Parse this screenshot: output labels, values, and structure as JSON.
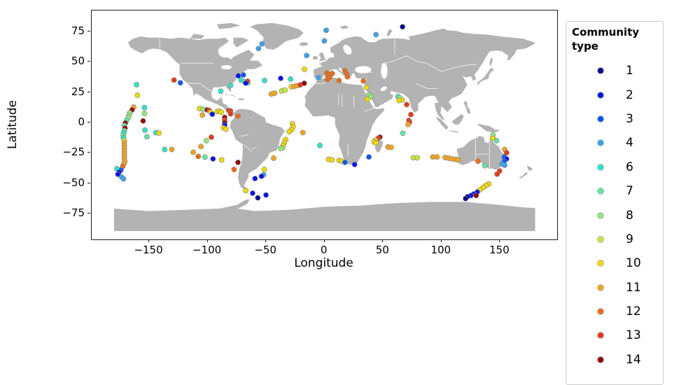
{
  "axes": {
    "xlabel": "Longitude",
    "ylabel": "Latitude",
    "x_ticks": [
      {
        "value": -150,
        "label": "−150"
      },
      {
        "value": -100,
        "label": "−100"
      },
      {
        "value": -50,
        "label": "−50"
      },
      {
        "value": 0,
        "label": "0"
      },
      {
        "value": 50,
        "label": "50"
      },
      {
        "value": 100,
        "label": "100"
      },
      {
        "value": 150,
        "label": "150"
      }
    ],
    "y_ticks": [
      {
        "value": 75,
        "label": "75"
      },
      {
        "value": 50,
        "label": "50"
      },
      {
        "value": 25,
        "label": "25"
      },
      {
        "value": 0,
        "label": "0"
      },
      {
        "value": -25,
        "label": "−25"
      },
      {
        "value": -50,
        "label": "−50"
      },
      {
        "value": -75,
        "label": "−75"
      }
    ]
  },
  "legend": {
    "title_line1": "Community",
    "title_line2": "type",
    "items": [
      {
        "label": "1",
        "color": "#00008F"
      },
      {
        "label": "2",
        "color": "#0013E8"
      },
      {
        "label": "3",
        "color": "#0057FB"
      },
      {
        "label": "4",
        "color": "#38A2EF"
      },
      {
        "label": "6",
        "color": "#2CE5C6"
      },
      {
        "label": "7",
        "color": "#5FE8A1"
      },
      {
        "label": "8",
        "color": "#90E87D"
      },
      {
        "label": "9",
        "color": "#C1E93E"
      },
      {
        "label": "10",
        "color": "#F1DA00"
      },
      {
        "label": "11",
        "color": "#F4A41F"
      },
      {
        "label": "12",
        "color": "#F16A14"
      },
      {
        "label": "13",
        "color": "#E73A17"
      },
      {
        "label": "14",
        "color": "#940000"
      }
    ]
  },
  "map": {
    "land_color": "#b3b3b3",
    "country_border_color": "#ffffff",
    "ocean_color": "#ffffff"
  },
  "chart_data": {
    "type": "scatter",
    "title": "",
    "xlabel": "Longitude",
    "ylabel": "Latitude",
    "xlim": [
      -199,
      199
    ],
    "ylim": [
      -99,
      99
    ],
    "x_tick_values": [
      -150,
      -100,
      -50,
      0,
      50,
      100,
      150
    ],
    "y_tick_values": [
      75,
      50,
      25,
      0,
      -25,
      -50,
      -75
    ],
    "grid": false,
    "legend_title": "Community type",
    "legend_position": "right-outside",
    "community_types": [
      1,
      2,
      3,
      4,
      6,
      7,
      8,
      9,
      10,
      11,
      12,
      13,
      14
    ],
    "type_colors": {
      "1": "#00008F",
      "2": "#0013E8",
      "3": "#0057FB",
      "4": "#38A2EF",
      "6": "#2CE5C6",
      "7": "#5FE8A1",
      "8": "#90E87D",
      "9": "#C1E93E",
      "10": "#F1DA00",
      "11": "#F4A41F",
      "12": "#F16A14",
      "13": "#E73A17",
      "14": "#940000"
    },
    "point_format": [
      "lon",
      "lat",
      "community_type"
    ],
    "points": [
      [
        -163.2,
        12.7,
        11
      ],
      [
        -164.6,
        10.4,
        14
      ],
      [
        -166.6,
        7.9,
        8
      ],
      [
        -167.2,
        5.8,
        8
      ],
      [
        -168,
        3.9,
        8
      ],
      [
        -169.2,
        1.7,
        7
      ],
      [
        -170.4,
        -0.4,
        14
      ],
      [
        -171.2,
        -2.5,
        7
      ],
      [
        -170.6,
        -4.6,
        14
      ],
      [
        -171.2,
        -6.8,
        7
      ],
      [
        -171.8,
        -8.7,
        6
      ],
      [
        -172.2,
        -10.8,
        7
      ],
      [
        -172,
        -12.7,
        6
      ],
      [
        -171.2,
        -15,
        10
      ],
      [
        -171.2,
        -17.1,
        11
      ],
      [
        -171.2,
        -19.2,
        11
      ],
      [
        -171.2,
        -21.4,
        11
      ],
      [
        -171.2,
        -23.5,
        11
      ],
      [
        -171.2,
        -25.6,
        11
      ],
      [
        -171.2,
        -27.7,
        11
      ],
      [
        -171.2,
        -29.8,
        11
      ],
      [
        -170.8,
        -31.9,
        11
      ],
      [
        -171.6,
        -34,
        11
      ],
      [
        -172.6,
        -36.2,
        12
      ],
      [
        -174.1,
        -39.1,
        3
      ],
      [
        -177.6,
        -38.1,
        6
      ],
      [
        -175.6,
        -40.8,
        2
      ],
      [
        -176.7,
        -42.7,
        2
      ],
      [
        -173.4,
        -45,
        4
      ],
      [
        -171.9,
        -46.4,
        4
      ],
      [
        -160.8,
        31.2,
        6
      ],
      [
        -160,
        22.5,
        10
      ],
      [
        -154,
        12.3,
        6
      ],
      [
        -154,
        7.5,
        8
      ],
      [
        -155.2,
        1.3,
        14
      ],
      [
        -153.6,
        -6.3,
        6
      ],
      [
        -151.8,
        -11.7,
        7
      ],
      [
        -144.2,
        -8.3,
        6
      ],
      [
        -141.6,
        -8.7,
        10
      ],
      [
        -136.7,
        -22.3,
        6
      ],
      [
        -130.7,
        -22.3,
        11
      ],
      [
        -128.7,
        35,
        13
      ],
      [
        -123.3,
        32.7,
        3
      ],
      [
        -105.7,
        -19.8,
        11
      ],
      [
        -112.3,
        -24.6,
        11
      ],
      [
        -108,
        -27.9,
        12
      ],
      [
        -102.3,
        -28.5,
        7
      ],
      [
        -101.1,
        -15,
        8
      ],
      [
        -95.4,
        -30,
        2
      ],
      [
        -88,
        -30.8,
        10
      ],
      [
        -96.8,
        -12.1,
        13
      ],
      [
        -74,
        -32.9,
        14
      ],
      [
        -77.4,
        -38.7,
        12
      ],
      [
        -106.8,
        11.4,
        10
      ],
      [
        -103.9,
        11,
        8
      ],
      [
        -100.4,
        10.4,
        14
      ],
      [
        -98.7,
        10,
        13
      ],
      [
        -104.4,
        6.2,
        11
      ],
      [
        -97.4,
        8.5,
        10
      ],
      [
        -96,
        6.8,
        2
      ],
      [
        -91.8,
        9.1,
        10
      ],
      [
        -90,
        9.4,
        10
      ],
      [
        -88.4,
        8.5,
        10
      ],
      [
        -82,
        10,
        13
      ],
      [
        -80.4,
        9.4,
        13
      ],
      [
        -80.4,
        7.1,
        13
      ],
      [
        -85.4,
        4.2,
        14
      ],
      [
        -85.4,
        1.9,
        13
      ],
      [
        -85.4,
        -0.2,
        14
      ],
      [
        -85.4,
        -2.1,
        2
      ],
      [
        -86.4,
        -4.4,
        10
      ],
      [
        -84.4,
        -5.4,
        10
      ],
      [
        -88.8,
        25.8,
        6
      ],
      [
        -80.4,
        30.6,
        6
      ],
      [
        -74,
        5.2,
        12
      ],
      [
        -69.4,
        39.2,
        3
      ],
      [
        -73.8,
        38.5,
        2
      ],
      [
        -71.4,
        35,
        6
      ],
      [
        -65.8,
        32.7,
        6
      ],
      [
        -68.5,
        33.5,
        7
      ],
      [
        -65.8,
        34,
        13
      ],
      [
        -67.4,
        32.5,
        2
      ],
      [
        -53.5,
        64.8,
        4
      ],
      [
        -56.5,
        61,
        4
      ],
      [
        -51.3,
        34.6,
        6
      ],
      [
        -37.5,
        36.4,
        2
      ],
      [
        -29.1,
        35.8,
        6
      ],
      [
        -15.4,
        55.2,
        4
      ],
      [
        -17.2,
        43.9,
        10
      ],
      [
        -45.5,
        23.5,
        11
      ],
      [
        -42.7,
        24.2,
        11
      ],
      [
        -36.7,
        26,
        9
      ],
      [
        -33.9,
        26.7,
        9
      ],
      [
        -28.5,
        29.4,
        10
      ],
      [
        -26.2,
        29.8,
        11
      ],
      [
        -23.6,
        30.4,
        11
      ],
      [
        -20.9,
        31,
        13
      ],
      [
        -17.4,
        32.3,
        14
      ],
      [
        1.4,
        76,
        4
      ],
      [
        -0.2,
        67.3,
        4
      ],
      [
        43.9,
        72.5,
        4
      ],
      [
        66.6,
        78.9,
        1
      ],
      [
        -5.2,
        36.9,
        4
      ],
      [
        2,
        40.8,
        12
      ],
      [
        4.4,
        40,
        12
      ],
      [
        6.6,
        40.4,
        12
      ],
      [
        2.8,
        37.9,
        12
      ],
      [
        4.5,
        37.3,
        12
      ],
      [
        2.2,
        35.4,
        12
      ],
      [
        12.3,
        34.6,
        12
      ],
      [
        17.4,
        42.7,
        12
      ],
      [
        18.9,
        40,
        12
      ],
      [
        19.5,
        37.7,
        12
      ],
      [
        33.1,
        34.2,
        12
      ],
      [
        35.7,
        28.9,
        10
      ],
      [
        37.9,
        22.9,
        8
      ],
      [
        39.7,
        21.5,
        8
      ],
      [
        36.7,
        19.2,
        10
      ],
      [
        62.6,
        21.5,
        7
      ],
      [
        64.4,
        20.2,
        8
      ],
      [
        66.2,
        18.6,
        10
      ],
      [
        63.8,
        18.1,
        10
      ],
      [
        70.2,
        14.8,
        13
      ],
      [
        73.8,
        6.5,
        13
      ],
      [
        72,
        1.7,
        13
      ],
      [
        72.6,
        0.4,
        13
      ],
      [
        71.4,
        -1.6,
        11
      ],
      [
        66.8,
        -8.8,
        7
      ],
      [
        47.3,
        -12.1,
        14
      ],
      [
        45.8,
        -13,
        13
      ],
      [
        43.3,
        -14.6,
        10
      ],
      [
        42.2,
        -16,
        10
      ],
      [
        43.9,
        -16.9,
        10
      ],
      [
        54.2,
        -20.2,
        11
      ],
      [
        56.9,
        -20.4,
        11
      ],
      [
        37.9,
        -28.4,
        3
      ],
      [
        75.8,
        -29,
        9
      ],
      [
        79.2,
        -29,
        9
      ],
      [
        92.5,
        -28.4,
        11
      ],
      [
        96.1,
        -28.4,
        11
      ],
      [
        103.1,
        -28.9,
        11
      ],
      [
        106.1,
        -29.4,
        11
      ],
      [
        109.1,
        -30,
        11
      ],
      [
        112.1,
        -30.4,
        11
      ],
      [
        114.1,
        -30.8,
        11
      ],
      [
        -4,
        -18.9,
        6
      ],
      [
        3.4,
        -30.4,
        10
      ],
      [
        6.3,
        -30.8,
        10
      ],
      [
        12.3,
        -31.3,
        10
      ],
      [
        14.4,
        -31.7,
        10
      ],
      [
        17.4,
        -32.9,
        3
      ],
      [
        25.7,
        -34.6,
        2
      ],
      [
        -27.5,
        -1.2,
        10
      ],
      [
        -26.9,
        -3.5,
        10
      ],
      [
        -28.1,
        -5.8,
        10
      ],
      [
        -30.2,
        -7.5,
        10
      ],
      [
        -18.6,
        -8.3,
        11
      ],
      [
        -33.3,
        -14,
        10
      ],
      [
        -34.5,
        -16.6,
        10
      ],
      [
        -35.5,
        -18.9,
        10
      ],
      [
        -35.9,
        -20.8,
        9
      ],
      [
        -37.5,
        -21.4,
        8
      ],
      [
        -43.5,
        -29.4,
        11
      ],
      [
        -51.5,
        -38.7,
        10
      ],
      [
        -52.1,
        -43.1,
        4
      ],
      [
        -53.9,
        -44.3,
        2
      ],
      [
        -59.5,
        -46.2,
        2
      ],
      [
        -67.4,
        -56.1,
        10
      ],
      [
        -61.5,
        -58.3,
        2
      ],
      [
        -57.1,
        -62.1,
        1
      ],
      [
        -50.1,
        -59.8,
        2
      ],
      [
        144,
        -10.2,
        8
      ],
      [
        144,
        -13.1,
        10
      ],
      [
        147,
        -15,
        7
      ],
      [
        154,
        -22.3,
        11
      ],
      [
        155.6,
        -25,
        13
      ],
      [
        153.6,
        -28.4,
        3
      ],
      [
        155.6,
        -30,
        2
      ],
      [
        153.6,
        -31.9,
        3
      ],
      [
        151.6,
        -34.2,
        4
      ],
      [
        154,
        -35.2,
        4
      ],
      [
        131.1,
        -31.9,
        12
      ],
      [
        137,
        -35.6,
        7
      ],
      [
        149.6,
        -40,
        13
      ],
      [
        147.5,
        -42.5,
        13
      ],
      [
        140.4,
        -50.6,
        10
      ],
      [
        138,
        -51.9,
        10
      ],
      [
        135.6,
        -53.5,
        10
      ],
      [
        133,
        -55.4,
        10
      ],
      [
        130.5,
        -57.3,
        2
      ],
      [
        127.6,
        -58.9,
        2
      ],
      [
        129.6,
        -60.2,
        14
      ],
      [
        125.1,
        -60.2,
        2
      ],
      [
        122.1,
        -61.2,
        1
      ],
      [
        120.5,
        -62.7,
        1
      ]
    ]
  }
}
